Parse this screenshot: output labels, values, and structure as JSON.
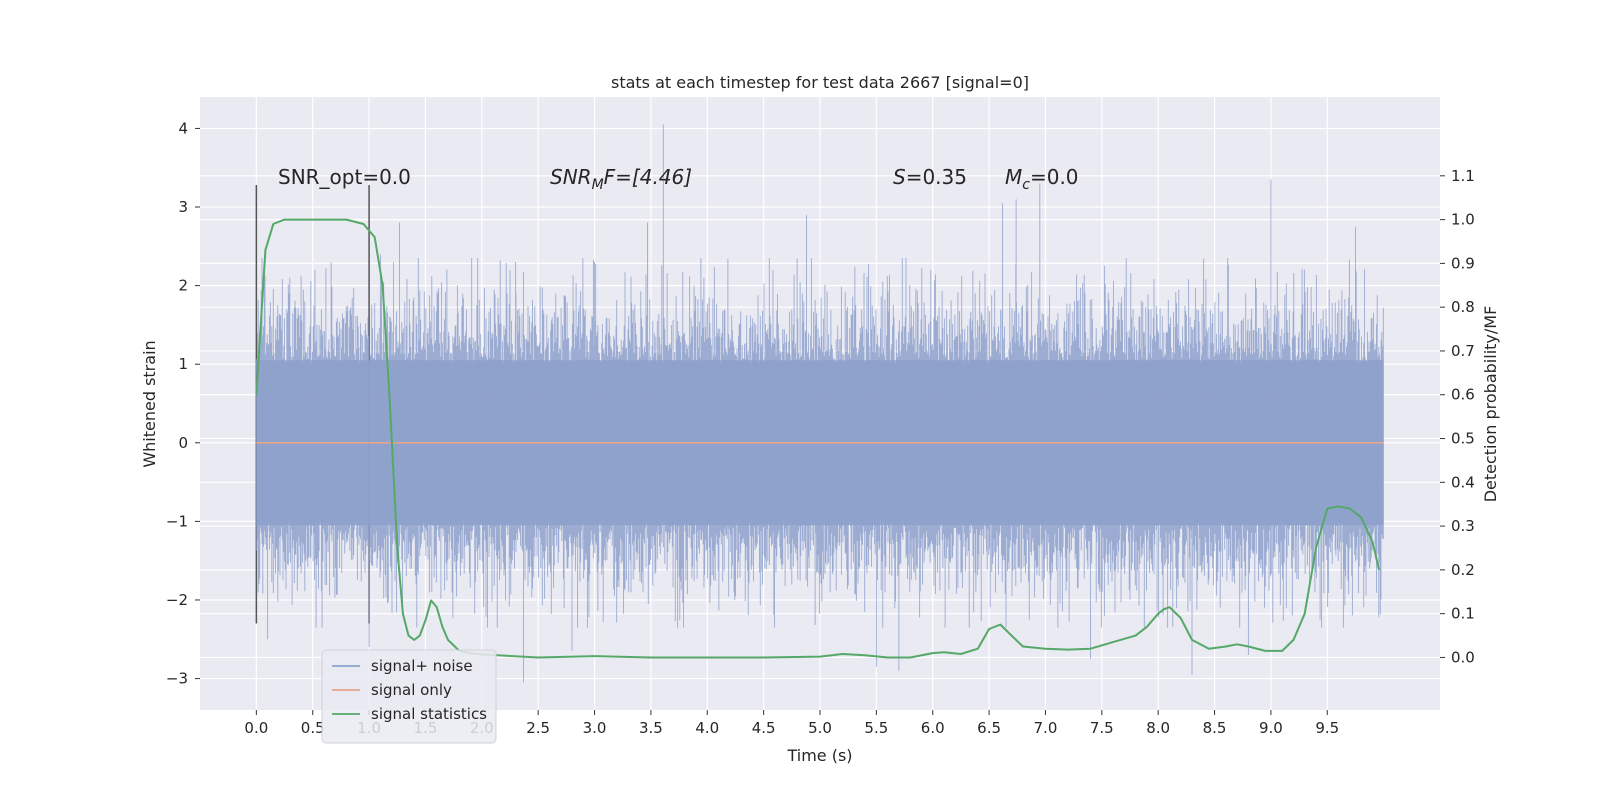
{
  "chart_data": {
    "type": "line",
    "title": "stats at each timestep for test data 2667 [signal=0]",
    "xlabel": "Time (s)",
    "ylabel": "Whitened strain",
    "y2label": "Detection probability/MF",
    "xlim": [
      -0.5,
      10.5
    ],
    "ylim": [
      -3.4,
      4.4
    ],
    "y2lim": [
      -0.12,
      1.28
    ],
    "x_ticks": [
      "0.0",
      "0.5",
      "1.0",
      "1.5",
      "2.0",
      "2.5",
      "3.0",
      "3.5",
      "4.0",
      "4.5",
      "5.0",
      "5.5",
      "6.0",
      "6.5",
      "7.0",
      "7.5",
      "8.0",
      "8.5",
      "9.0",
      "9.5"
    ],
    "y_ticks": [
      "−3",
      "−2",
      "−1",
      "0",
      "1",
      "2",
      "3",
      "4"
    ],
    "y2_ticks": [
      "0.0",
      "0.1",
      "0.2",
      "0.3",
      "0.4",
      "0.5",
      "0.6",
      "0.7",
      "0.8",
      "0.9",
      "1.0",
      "1.1"
    ],
    "annotations": {
      "snr_opt": "SNR_opt=0.0",
      "snr_mf_name": "SNR",
      "snr_mf_sub": "M",
      "snr_mf_rest": "F=[4.46]",
      "s_name": "S",
      "s_rest": "=0.35",
      "mc_name": "M",
      "mc_sub": "c",
      "mc_rest": "=0.0"
    },
    "grid": true,
    "legend_position": "lower-left",
    "window_markers_x": [
      0.0,
      1.0
    ],
    "series": [
      {
        "name": "signal+ noise",
        "axis": "left",
        "style": "dense-noise",
        "color": "#8da0cb",
        "x_range": [
          0.0,
          10.0
        ],
        "core_amplitude": 1.05,
        "peaks": [
          {
            "x": 0.52,
            "y": 2.2
          },
          {
            "x": 1.1,
            "y": 2.4
          },
          {
            "x": 1.27,
            "y": 2.8
          },
          {
            "x": 2.3,
            "y": 2.3
          },
          {
            "x": 3.0,
            "y": 2.3
          },
          {
            "x": 3.47,
            "y": 2.8
          },
          {
            "x": 3.61,
            "y": 4.05
          },
          {
            "x": 4.88,
            "y": 2.9
          },
          {
            "x": 6.62,
            "y": 3.05
          },
          {
            "x": 6.74,
            "y": 3.1
          },
          {
            "x": 6.95,
            "y": 3.3
          },
          {
            "x": 9.0,
            "y": 3.35
          },
          {
            "x": 9.75,
            "y": 2.75
          }
        ],
        "troughs": [
          {
            "x": 0.1,
            "y": -2.5
          },
          {
            "x": 1.0,
            "y": -2.6
          },
          {
            "x": 2.37,
            "y": -3.05
          },
          {
            "x": 2.8,
            "y": -2.65
          },
          {
            "x": 5.5,
            "y": -2.85
          },
          {
            "x": 5.7,
            "y": -2.9
          },
          {
            "x": 7.4,
            "y": -2.75
          },
          {
            "x": 8.3,
            "y": -2.95
          },
          {
            "x": 8.8,
            "y": -2.7
          }
        ]
      },
      {
        "name": "signal only",
        "axis": "left",
        "color": "#e5a58b",
        "x": [
          0.0,
          10.0
        ],
        "y": [
          0.0,
          0.0
        ]
      },
      {
        "name": "signal statistics",
        "axis": "right",
        "color": "#55a868",
        "x": [
          0.0,
          0.08,
          0.15,
          0.25,
          0.4,
          0.6,
          0.8,
          0.95,
          1.05,
          1.12,
          1.18,
          1.25,
          1.3,
          1.35,
          1.4,
          1.45,
          1.5,
          1.55,
          1.6,
          1.65,
          1.7,
          1.8,
          1.9,
          2.0,
          2.5,
          3.0,
          3.5,
          4.0,
          4.5,
          5.0,
          5.2,
          5.4,
          5.6,
          5.8,
          6.0,
          6.1,
          6.25,
          6.4,
          6.5,
          6.6,
          6.7,
          6.8,
          7.0,
          7.2,
          7.4,
          7.6,
          7.8,
          7.9,
          8.0,
          8.05,
          8.1,
          8.2,
          8.3,
          8.45,
          8.6,
          8.7,
          8.8,
          8.95,
          9.1,
          9.2,
          9.3,
          9.4,
          9.5,
          9.6,
          9.7,
          9.8,
          9.9,
          9.96
        ],
        "y": [
          0.6,
          0.93,
          0.99,
          1.0,
          1.0,
          1.0,
          1.0,
          0.99,
          0.96,
          0.85,
          0.6,
          0.25,
          0.1,
          0.05,
          0.04,
          0.05,
          0.085,
          0.13,
          0.115,
          0.07,
          0.04,
          0.015,
          0.01,
          0.007,
          0.0,
          0.003,
          0.0,
          0.0,
          0.0,
          0.002,
          0.008,
          0.005,
          0.0,
          0.0,
          0.01,
          0.012,
          0.008,
          0.02,
          0.065,
          0.075,
          0.05,
          0.025,
          0.02,
          0.018,
          0.02,
          0.035,
          0.05,
          0.07,
          0.1,
          0.11,
          0.115,
          0.09,
          0.04,
          0.02,
          0.025,
          0.03,
          0.025,
          0.015,
          0.015,
          0.04,
          0.1,
          0.25,
          0.34,
          0.345,
          0.34,
          0.32,
          0.265,
          0.2
        ]
      }
    ],
    "colors": {
      "plot_background": "#eaeaf2",
      "grid": "#ffffff",
      "marker": "#555555"
    }
  }
}
